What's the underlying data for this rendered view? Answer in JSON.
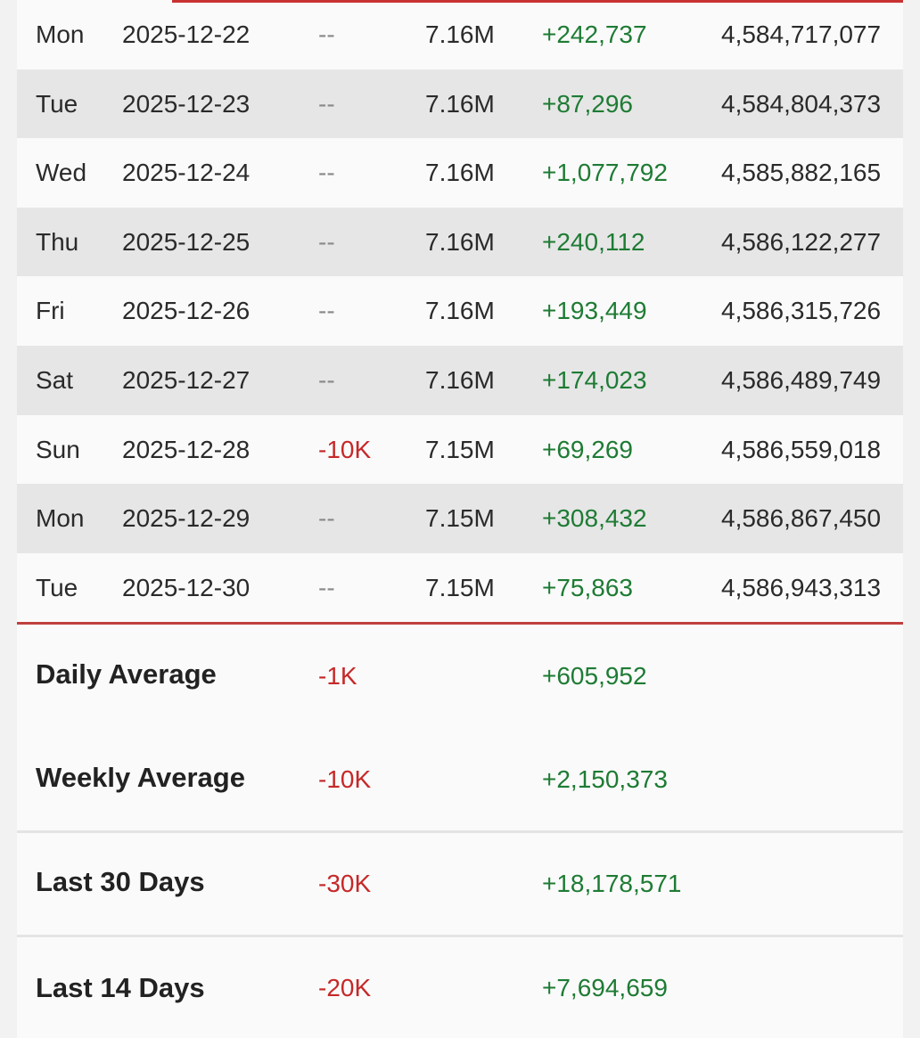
{
  "rows": [
    {
      "day": "Mon",
      "date": "2025-12-22",
      "change": "--",
      "subs": "7.16M",
      "views": "+242,737",
      "total": "4,584,717,077"
    },
    {
      "day": "Tue",
      "date": "2025-12-23",
      "change": "--",
      "subs": "7.16M",
      "views": "+87,296",
      "total": "4,584,804,373"
    },
    {
      "day": "Wed",
      "date": "2025-12-24",
      "change": "--",
      "subs": "7.16M",
      "views": "+1,077,792",
      "total": "4,585,882,165"
    },
    {
      "day": "Thu",
      "date": "2025-12-25",
      "change": "--",
      "subs": "7.16M",
      "views": "+240,112",
      "total": "4,586,122,277"
    },
    {
      "day": "Fri",
      "date": "2025-12-26",
      "change": "--",
      "subs": "7.16M",
      "views": "+193,449",
      "total": "4,586,315,726"
    },
    {
      "day": "Sat",
      "date": "2025-12-27",
      "change": "--",
      "subs": "7.16M",
      "views": "+174,023",
      "total": "4,586,489,749"
    },
    {
      "day": "Sun",
      "date": "2025-12-28",
      "change": "-10K",
      "subs": "7.15M",
      "views": "+69,269",
      "total": "4,586,559,018"
    },
    {
      "day": "Mon",
      "date": "2025-12-29",
      "change": "--",
      "subs": "7.15M",
      "views": "+308,432",
      "total": "4,586,867,450"
    },
    {
      "day": "Tue",
      "date": "2025-12-30",
      "change": "--",
      "subs": "7.15M",
      "views": "+75,863",
      "total": "4,586,943,313"
    }
  ],
  "summary": [
    {
      "label": "Daily Average",
      "change": "-1K",
      "views": "+605,952"
    },
    {
      "label": "Weekly Average",
      "change": "-10K",
      "views": "+2,150,373"
    },
    {
      "label": "Last 30 Days",
      "change": "-30K",
      "views": "+18,178,571"
    },
    {
      "label": "Last 14 Days",
      "change": "-20K",
      "views": "+7,694,659"
    }
  ],
  "colors": {
    "negative": "#c62828",
    "positive": "#1e7b34",
    "accent": "#c83232"
  }
}
